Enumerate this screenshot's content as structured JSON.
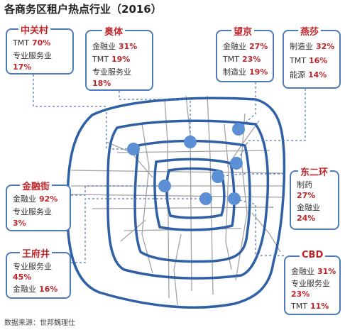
{
  "title": "各商务区租户热点行业（2016）",
  "source": "数据来源：世邦魏理仕",
  "colors": {
    "ring": "#2f5fa5",
    "dot": "#5b8fd6",
    "road": "#9a9a9a",
    "accent": "#c0252b",
    "border": "#4f7bb8"
  },
  "districts": [
    {
      "name": "中关村",
      "rows": [
        {
          "label": "TMT",
          "value": "70%"
        },
        {
          "label": "专业服务业",
          "value": "17%"
        }
      ]
    },
    {
      "name": "奥体",
      "rows": [
        {
          "label": "金融业",
          "value": "31%"
        },
        {
          "label": "TMT",
          "value": "19%"
        },
        {
          "label": "专业服务业",
          "value": "18%"
        }
      ]
    },
    {
      "name": "望京",
      "rows": [
        {
          "label": "金融业",
          "value": "27%"
        },
        {
          "label": "TMT",
          "value": "23%"
        },
        {
          "label": "制造业",
          "value": "19%"
        }
      ]
    },
    {
      "name": "燕莎",
      "rows": [
        {
          "label": "制造业",
          "value": "32%"
        },
        {
          "label": "TMT",
          "value": "16%"
        },
        {
          "label": "能源",
          "value": "14%"
        }
      ]
    },
    {
      "name": "东二环",
      "rows": [
        {
          "label": "制药",
          "value": "27%"
        },
        {
          "label": "金融业",
          "value": "24%"
        }
      ]
    },
    {
      "name": "金融街",
      "rows": [
        {
          "label": "金融业",
          "value": "92%"
        },
        {
          "label": "专业服务业",
          "value": "3%"
        }
      ]
    },
    {
      "name": "王府井",
      "rows": [
        {
          "label": "专业服务业",
          "value": "45%"
        },
        {
          "label": "金融业",
          "value": "16%"
        }
      ]
    },
    {
      "name": "CBD",
      "rows": [
        {
          "label": "金融业",
          "value": "31%"
        },
        {
          "label": "专业服务业",
          "value": "23%"
        },
        {
          "label": "TMT",
          "value": "11%"
        }
      ]
    }
  ]
}
